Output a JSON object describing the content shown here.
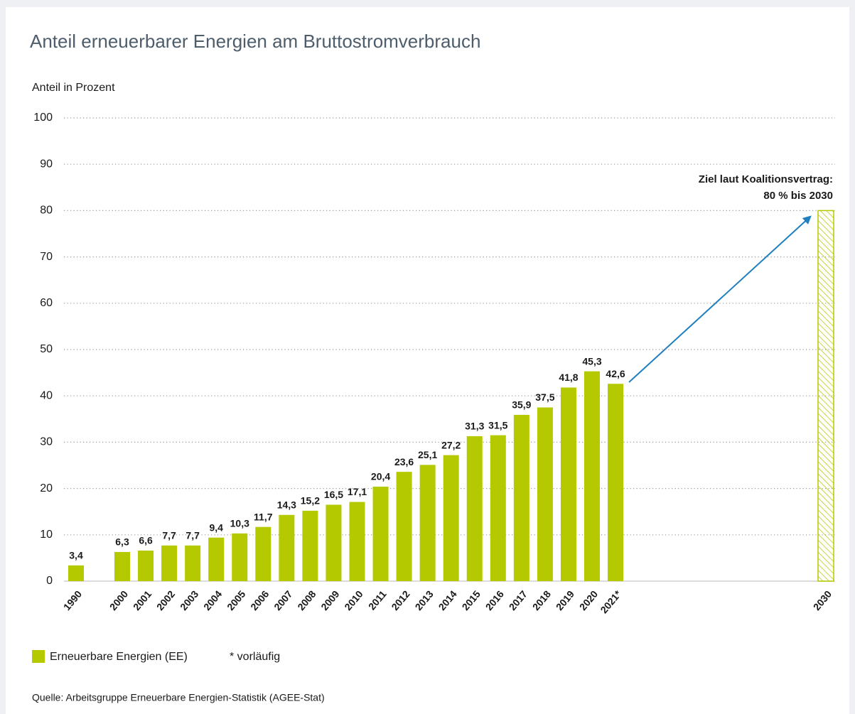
{
  "chart_data": {
    "type": "bar",
    "title": "Anteil erneuerbarer Energien am Bruttostromverbrauch",
    "y_axis_label": "Anteil in Prozent",
    "categories": [
      "1990",
      "2000",
      "2001",
      "2002",
      "2003",
      "2004",
      "2005",
      "2006",
      "2007",
      "2008",
      "2009",
      "2010",
      "2011",
      "2012",
      "2013",
      "2014",
      "2015",
      "2016",
      "2017",
      "2018",
      "2019",
      "2020",
      "2021*"
    ],
    "series": [
      {
        "name": "Erneuerbare Energien (EE)",
        "color": "#b5c900",
        "values": [
          3.4,
          6.3,
          6.6,
          7.7,
          7.7,
          9.4,
          10.3,
          11.7,
          14.3,
          15.2,
          16.5,
          17.1,
          20.4,
          23.6,
          25.1,
          27.2,
          31.3,
          31.5,
          35.9,
          37.5,
          41.8,
          45.3,
          42.6
        ],
        "value_labels": [
          "3,4",
          "6,3",
          "6,6",
          "7,7",
          "7,7",
          "9,4",
          "10,3",
          "11,7",
          "14,3",
          "15,2",
          "16,5",
          "17,1",
          "20,4",
          "23,6",
          "25,1",
          "27,2",
          "31,3",
          "31,5",
          "35,9",
          "37,5",
          "41,8",
          "45,3",
          "42,6"
        ]
      }
    ],
    "target": {
      "category": "2030",
      "value": 80,
      "annotation": [
        "Ziel laut Koalitionsvertrag:",
        "80 % bis 2030"
      ]
    },
    "footnote": "* vorläufig",
    "source": "Quelle: Arbeitsgruppe Erneuerbare Energien-Statistik (AGEE-Stat)",
    "ylim": [
      0,
      100
    ],
    "yticks": [
      0,
      10,
      20,
      30,
      40,
      50,
      60,
      70,
      80,
      90,
      100
    ],
    "grid": true
  }
}
